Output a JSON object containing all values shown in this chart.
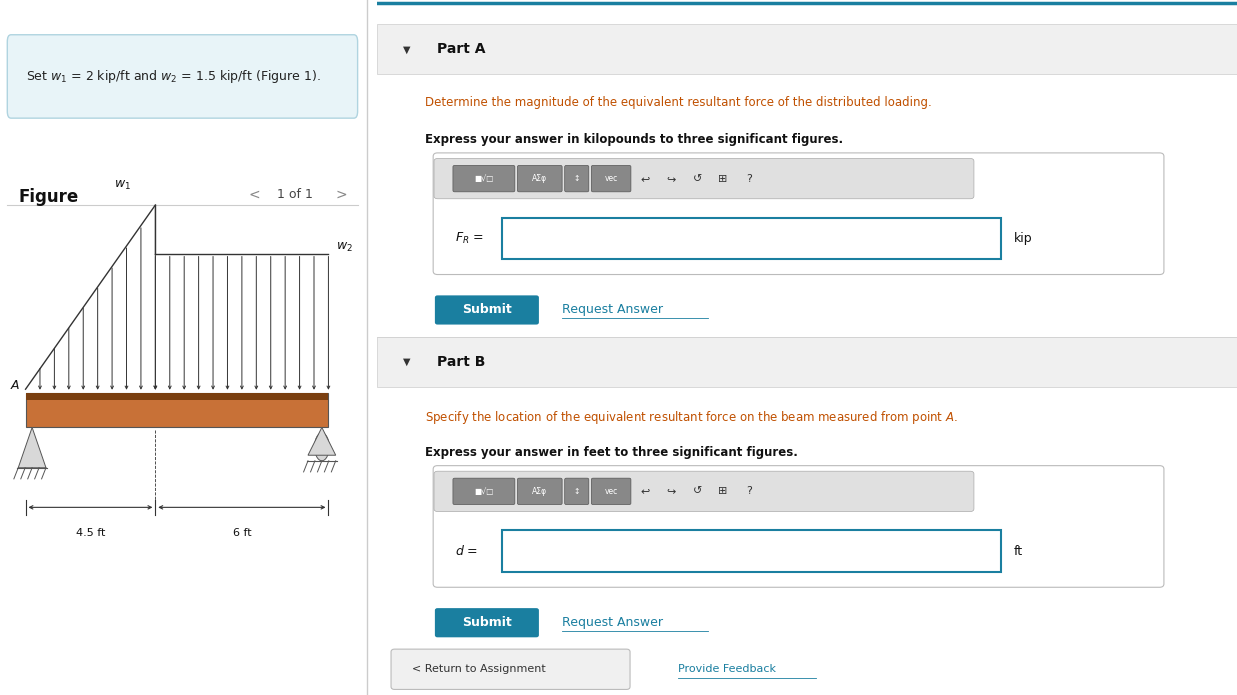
{
  "bg_color": "#ffffff",
  "highlight_box_bg": "#e8f4f8",
  "part_a_header": "Part A",
  "part_a_q1": "Determine the magnitude of the equivalent resultant force of the distributed loading.",
  "part_a_q2": "Express your answer in kilopounds to three significant figures.",
  "part_a_label": "$F_R$ =",
  "part_a_unit": "kip",
  "part_b_header": "Part B",
  "part_b_q1": "Specify the location of the equivalent resultant force on the beam measured from point $A$.",
  "part_b_q2": "Express your answer in feet to three significant figures.",
  "part_b_label": "$d$ =",
  "part_b_unit": "ft",
  "submit_color": "#1a7fa0",
  "submit_text": "Submit",
  "request_text": "Request Answer",
  "request_color": "#1a7fa0",
  "dim_45": "4.5 ft",
  "dim_6": "6 ft",
  "beam_color": "#c87137",
  "beam_dark": "#7a3f10",
  "arrow_color": "#333333",
  "label_w1": "$w_1$",
  "label_w2": "$w_2$",
  "label_A": "$A$",
  "divider_color": "#cccccc",
  "top_border_color": "#1a7fa0",
  "input_border": "#1a7fa0"
}
